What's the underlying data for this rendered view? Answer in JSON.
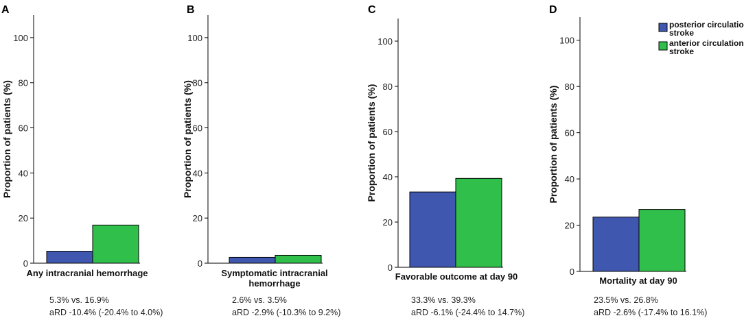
{
  "chart_data": [
    {
      "type": "bar",
      "panel": "A",
      "title": "",
      "xlabel": "Any intracranial hemorrhage",
      "ylabel": "Proportion of patients (%)",
      "ylim": [
        0,
        110
      ],
      "yticks": [
        0,
        20,
        40,
        60,
        80,
        100
      ],
      "series": [
        {
          "name": "posterior circulation stroke",
          "values": [
            5.3
          ]
        },
        {
          "name": "anterior circulation stroke",
          "values": [
            16.9
          ]
        }
      ],
      "notes": [
        "5.3% vs. 16.9%",
        "aRD -10.4% (-20.4% to 4.0%)"
      ]
    },
    {
      "type": "bar",
      "panel": "B",
      "title": "",
      "xlabel": "Symptomatic intracranial hemorrhage",
      "ylabel": "Proportion of patients (%)",
      "ylim": [
        0,
        110
      ],
      "yticks": [
        0,
        20,
        40,
        60,
        80,
        100
      ],
      "series": [
        {
          "name": "posterior circulation stroke",
          "values": [
            2.6
          ]
        },
        {
          "name": "anterior circulation stroke",
          "values": [
            3.5
          ]
        }
      ],
      "notes": [
        "2.6% vs. 3.5%",
        "aRD -2.9% (-10.3% to 9.2%)"
      ]
    },
    {
      "type": "bar",
      "panel": "C",
      "title": "",
      "xlabel": "Favorable outcome at day 90",
      "ylabel": "Proportion of patients (%)",
      "ylim": [
        0,
        110
      ],
      "yticks": [
        0,
        20,
        40,
        60,
        80,
        100
      ],
      "series": [
        {
          "name": "posterior circulation stroke",
          "values": [
            33.3
          ]
        },
        {
          "name": "anterior circulation stroke",
          "values": [
            39.3
          ]
        }
      ],
      "notes": [
        "33.3% vs. 39.3%",
        "aRD -6.1% (-24.4% to 14.7%)"
      ]
    },
    {
      "type": "bar",
      "panel": "D",
      "title": "",
      "xlabel": "Mortality at day 90",
      "ylabel": "Proportion of patients (%)",
      "ylim": [
        0,
        110
      ],
      "yticks": [
        0,
        20,
        40,
        60,
        80,
        100
      ],
      "series": [
        {
          "name": "posterior circulation stroke",
          "values": [
            23.5
          ]
        },
        {
          "name": "anterior circulation stroke",
          "values": [
            26.8
          ]
        }
      ],
      "notes": [
        "23.5% vs. 26.8%",
        "aRD -2.6% (-17.4% to 16.1%)"
      ]
    }
  ],
  "legend": {
    "placement": "top-right",
    "entries": [
      {
        "label_line1": "posterior circulation",
        "label_line2": "stroke",
        "color": "#3f57ae"
      },
      {
        "label_line1": "anterior circulation",
        "label_line2": "stroke",
        "color": "#2fbf4a"
      }
    ]
  },
  "colors": {
    "posterior": "#3f57ae",
    "anterior": "#2fbf4a"
  }
}
